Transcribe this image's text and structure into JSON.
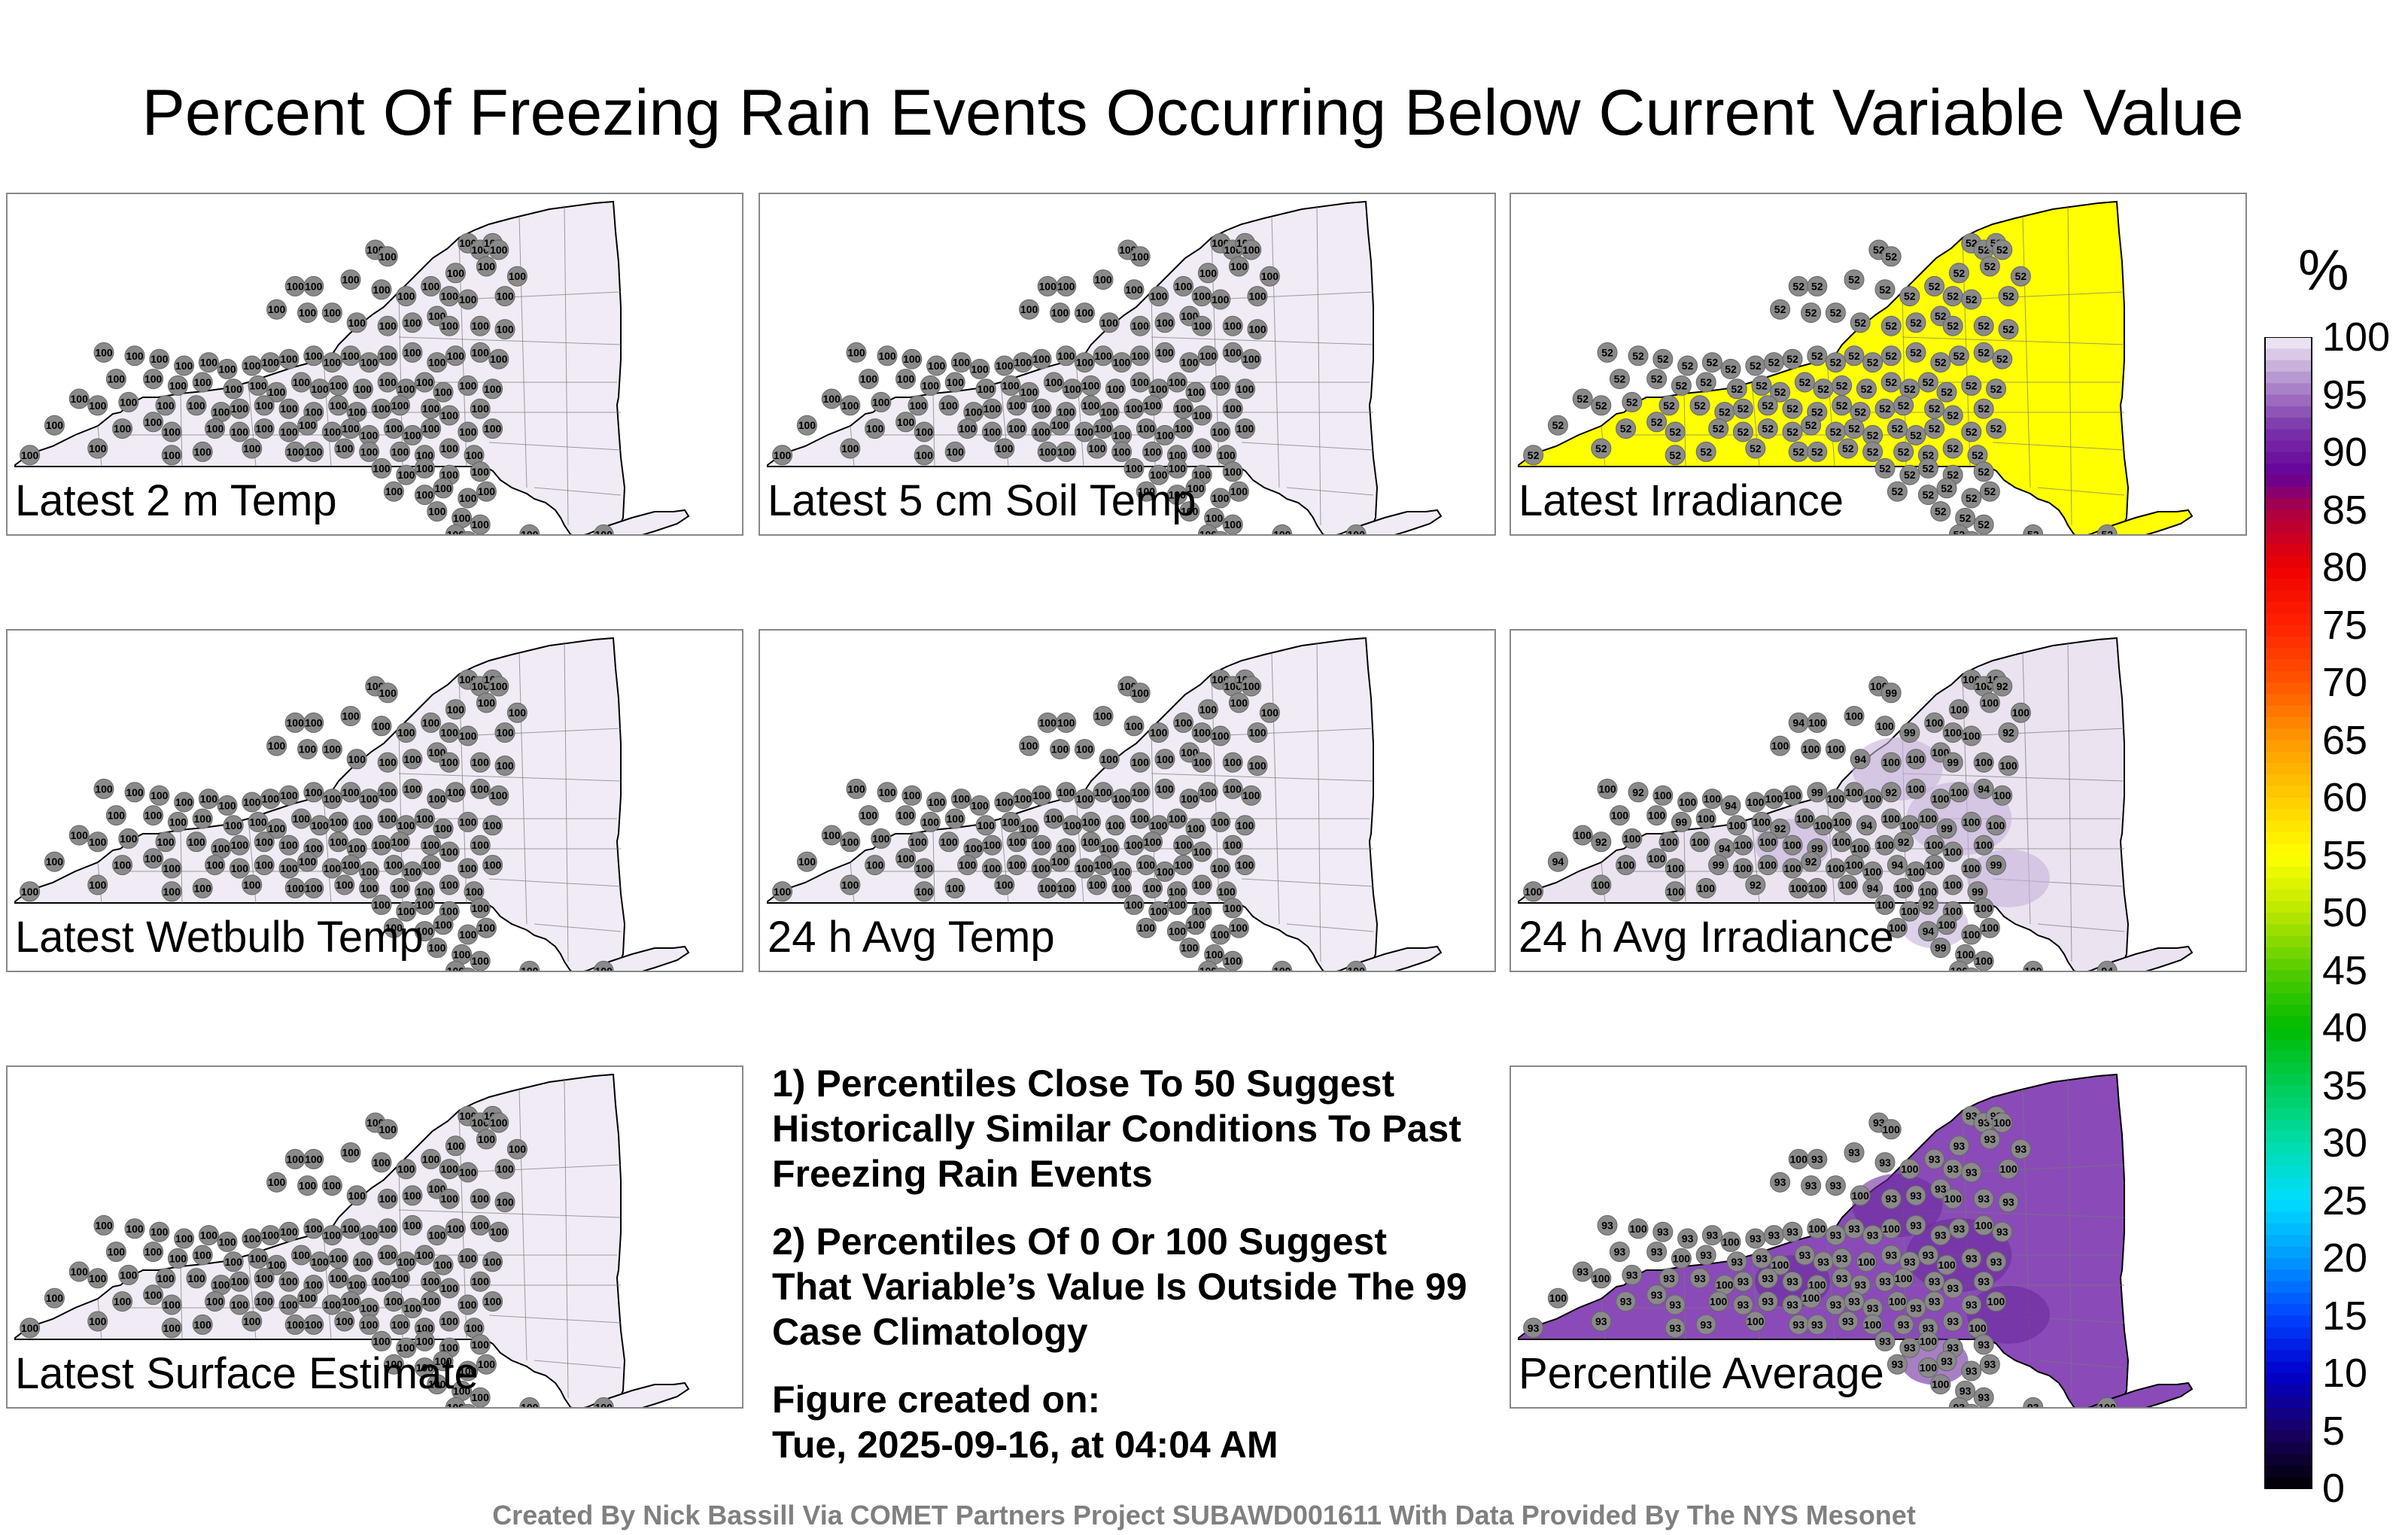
{
  "title": "Percent Of Freezing Rain Events Occurring Below Current Variable Value",
  "panels": [
    {
      "id": "p2m",
      "label": "Latest 2 m Temp",
      "fill": "#f0ebf4",
      "mode": "uniform",
      "value": "100"
    },
    {
      "id": "p5cm",
      "label": "Latest 5 cm Soil Temp",
      "fill": "#f0ebf4",
      "mode": "uniform",
      "value": "100"
    },
    {
      "id": "pirr",
      "label": "Latest Irradiance",
      "fill": "#ffff00",
      "mode": "uniform",
      "value": "52"
    },
    {
      "id": "pwb",
      "label": "Latest Wetbulb Temp",
      "fill": "#f0ebf4",
      "mode": "uniform",
      "value": "100"
    },
    {
      "id": "pavgt",
      "label": "24 h Avg Temp",
      "fill": "#f0ebf4",
      "mode": "uniform",
      "value": "100"
    },
    {
      "id": "pavgirr",
      "label": "24 h Avg Irradiance",
      "fill": "#ebe3f0",
      "mode": "mixed",
      "value": "100",
      "alt_values": [
        "98",
        "99",
        "95",
        "94",
        "93",
        "92"
      ]
    },
    {
      "id": "psfc",
      "label": "Latest Surface Estimate",
      "fill": "#f0ebf4",
      "mode": "uniform",
      "value": "100"
    },
    {
      "id": "pavg",
      "label": "Percentile Average",
      "fill": "#8a4bb8",
      "mode": "mixed",
      "value": "93",
      "alt_values": [
        "92",
        "100",
        "91",
        "88"
      ]
    }
  ],
  "notes": [
    "1) Percentiles Close To 50 Suggest Historically Similar Conditions To Past Freezing Rain Events",
    "2) Percentiles Of 0 Or 100 Suggest That Variable’s Value Is Outside The 99 Case Climatology",
    "Figure created on:",
    "Tue, 2025-09-16, at 04:04 AM"
  ],
  "footer": "Created By Nick Bassill Via COMET Partners Project SUBAWD001611 With Data Provided By The NYS Mesonet",
  "colorbar": {
    "unit": "%",
    "ticks": [
      "100",
      "95",
      "90",
      "85",
      "80",
      "75",
      "70",
      "65",
      "60",
      "55",
      "50",
      "45",
      "40",
      "35",
      "30",
      "25",
      "20",
      "15",
      "10",
      "5",
      "0"
    ],
    "stops": [
      {
        "v": 0,
        "c": "#000000"
      },
      {
        "v": 5,
        "c": "#1a0066"
      },
      {
        "v": 10,
        "c": "#0000cc"
      },
      {
        "v": 15,
        "c": "#0044ff"
      },
      {
        "v": 20,
        "c": "#0099ff"
      },
      {
        "v": 25,
        "c": "#00ddff"
      },
      {
        "v": 30,
        "c": "#00ddaa"
      },
      {
        "v": 35,
        "c": "#00cc55"
      },
      {
        "v": 40,
        "c": "#00bb00"
      },
      {
        "v": 45,
        "c": "#55cc00"
      },
      {
        "v": 50,
        "c": "#bbe600"
      },
      {
        "v": 55,
        "c": "#ffff00"
      },
      {
        "v": 60,
        "c": "#ffcc00"
      },
      {
        "v": 65,
        "c": "#ff9900"
      },
      {
        "v": 70,
        "c": "#ff5500"
      },
      {
        "v": 75,
        "c": "#ff2200"
      },
      {
        "v": 80,
        "c": "#ee0000"
      },
      {
        "v": 85,
        "c": "#aa0044"
      },
      {
        "v": 88,
        "c": "#660099"
      },
      {
        "v": 92,
        "c": "#7a33aa"
      },
      {
        "v": 96,
        "c": "#b08ccc"
      },
      {
        "v": 100,
        "c": "#f2eef6"
      }
    ]
  }
}
